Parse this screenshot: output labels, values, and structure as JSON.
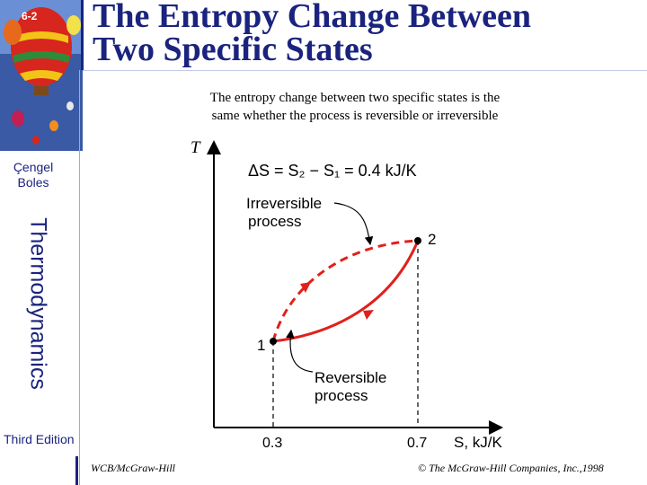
{
  "slide": {
    "number": "6-2",
    "title_line1": "The Entropy Change Between",
    "title_line2": "Two Specific States",
    "subtitle_line1": "The entropy change between two specific states is the",
    "subtitle_line2": "same whether the process is reversible or irreversible"
  },
  "sidebar": {
    "author_line1": "Çengel",
    "author_line2": "Boles",
    "book_title": "Thermodynamics",
    "edition": "Third Edition"
  },
  "diagram": {
    "y_axis_label": "T",
    "x_axis_label": "S, kJ/K",
    "equation": "ΔS = S₂ − S₁ = 0.4  kJ/K",
    "x_tick_1": "0.3",
    "x_tick_2": "0.7",
    "state_1": "1",
    "state_2": "2",
    "irreversible_line1": "Irreversible",
    "irreversible_line2": "process",
    "reversible_line1": "Reversible",
    "reversible_line2": "process"
  },
  "footer": {
    "publisher_left": "WCB/McGraw-Hill",
    "publisher_right": "© The McGraw-Hill Companies, Inc.,1998"
  },
  "colors": {
    "accent_blue": "#1a237e",
    "process_red": "#e0201b"
  }
}
